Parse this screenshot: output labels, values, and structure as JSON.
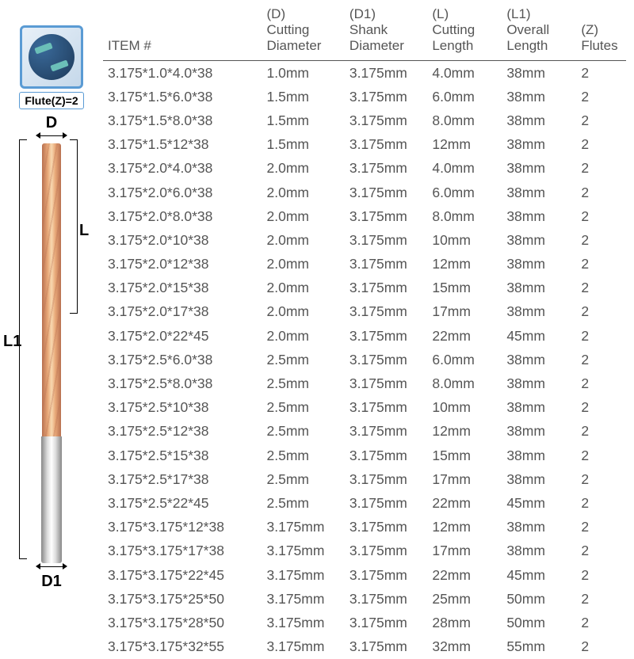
{
  "diagram": {
    "flute_label": "Flute(Z)=2",
    "dim_D": "D",
    "dim_L": "L",
    "dim_L1": "L1",
    "dim_D1": "D1"
  },
  "table": {
    "columns": [
      {
        "key": "item",
        "line1": "",
        "line2": "ITEM #"
      },
      {
        "key": "d",
        "line1": "(D)",
        "line2": "Cutting",
        "line3": "Diameter"
      },
      {
        "key": "d1",
        "line1": "(D1)",
        "line2": "Shank",
        "line3": "Diameter"
      },
      {
        "key": "l",
        "line1": "(L)",
        "line2": "Cutting",
        "line3": "Length"
      },
      {
        "key": "l1",
        "line1": "(L1)",
        "line2": "Overall",
        "line3": "Length"
      },
      {
        "key": "z",
        "line1": "(Z)",
        "line2": "Flutes"
      }
    ],
    "rows": [
      {
        "item": "3.175*1.0*4.0*38",
        "d": "1.0mm",
        "d1": "3.175mm",
        "l": "4.0mm",
        "l1": "38mm",
        "z": "2"
      },
      {
        "item": "3.175*1.5*6.0*38",
        "d": "1.5mm",
        "d1": "3.175mm",
        "l": "6.0mm",
        "l1": "38mm",
        "z": "2"
      },
      {
        "item": "3.175*1.5*8.0*38",
        "d": "1.5mm",
        "d1": "3.175mm",
        "l": "8.0mm",
        "l1": "38mm",
        "z": "2"
      },
      {
        "item": "3.175*1.5*12*38",
        "d": "1.5mm",
        "d1": "3.175mm",
        "l": "12mm",
        "l1": "38mm",
        "z": "2"
      },
      {
        "item": "3.175*2.0*4.0*38",
        "d": "2.0mm",
        "d1": "3.175mm",
        "l": "4.0mm",
        "l1": "38mm",
        "z": "2"
      },
      {
        "item": "3.175*2.0*6.0*38",
        "d": "2.0mm",
        "d1": "3.175mm",
        "l": "6.0mm",
        "l1": "38mm",
        "z": "2"
      },
      {
        "item": "3.175*2.0*8.0*38",
        "d": "2.0mm",
        "d1": "3.175mm",
        "l": "8.0mm",
        "l1": "38mm",
        "z": "2"
      },
      {
        "item": "3.175*2.0*10*38",
        "d": "2.0mm",
        "d1": "3.175mm",
        "l": "10mm",
        "l1": "38mm",
        "z": "2"
      },
      {
        "item": "3.175*2.0*12*38",
        "d": "2.0mm",
        "d1": "3.175mm",
        "l": "12mm",
        "l1": "38mm",
        "z": "2"
      },
      {
        "item": "3.175*2.0*15*38",
        "d": "2.0mm",
        "d1": "3.175mm",
        "l": "15mm",
        "l1": "38mm",
        "z": "2"
      },
      {
        "item": "3.175*2.0*17*38",
        "d": "2.0mm",
        "d1": "3.175mm",
        "l": "17mm",
        "l1": "38mm",
        "z": "2"
      },
      {
        "item": "3.175*2.0*22*45",
        "d": "2.0mm",
        "d1": "3.175mm",
        "l": "22mm",
        "l1": "45mm",
        "z": "2"
      },
      {
        "item": "3.175*2.5*6.0*38",
        "d": "2.5mm",
        "d1": "3.175mm",
        "l": "6.0mm",
        "l1": "38mm",
        "z": "2"
      },
      {
        "item": "3.175*2.5*8.0*38",
        "d": "2.5mm",
        "d1": "3.175mm",
        "l": "8.0mm",
        "l1": "38mm",
        "z": "2"
      },
      {
        "item": "3.175*2.5*10*38",
        "d": "2.5mm",
        "d1": "3.175mm",
        "l": "10mm",
        "l1": "38mm",
        "z": "2"
      },
      {
        "item": "3.175*2.5*12*38",
        "d": "2.5mm",
        "d1": "3.175mm",
        "l": "12mm",
        "l1": "38mm",
        "z": "2"
      },
      {
        "item": "3.175*2.5*15*38",
        "d": "2.5mm",
        "d1": "3.175mm",
        "l": "15mm",
        "l1": "38mm",
        "z": "2"
      },
      {
        "item": "3.175*2.5*17*38",
        "d": "2.5mm",
        "d1": "3.175mm",
        "l": "17mm",
        "l1": "38mm",
        "z": "2"
      },
      {
        "item": "3.175*2.5*22*45",
        "d": "2.5mm",
        "d1": "3.175mm",
        "l": "22mm",
        "l1": "45mm",
        "z": "2"
      },
      {
        "item": "3.175*3.175*12*38",
        "d": "3.175mm",
        "d1": "3.175mm",
        "l": "12mm",
        "l1": "38mm",
        "z": "2"
      },
      {
        "item": "3.175*3.175*17*38",
        "d": "3.175mm",
        "d1": "3.175mm",
        "l": "17mm",
        "l1": "38mm",
        "z": "2"
      },
      {
        "item": "3.175*3.175*22*45",
        "d": "3.175mm",
        "d1": "3.175mm",
        "l": "22mm",
        "l1": "45mm",
        "z": "2"
      },
      {
        "item": "3.175*3.175*25*50",
        "d": "3.175mm",
        "d1": "3.175mm",
        "l": "25mm",
        "l1": "50mm",
        "z": "2"
      },
      {
        "item": "3.175*3.175*28*50",
        "d": "3.175mm",
        "d1": "3.175mm",
        "l": "28mm",
        "l1": "50mm",
        "z": "2"
      },
      {
        "item": "3.175*3.175*32*55",
        "d": "3.175mm",
        "d1": "3.175mm",
        "l": "32mm",
        "l1": "55mm",
        "z": "2"
      }
    ]
  }
}
